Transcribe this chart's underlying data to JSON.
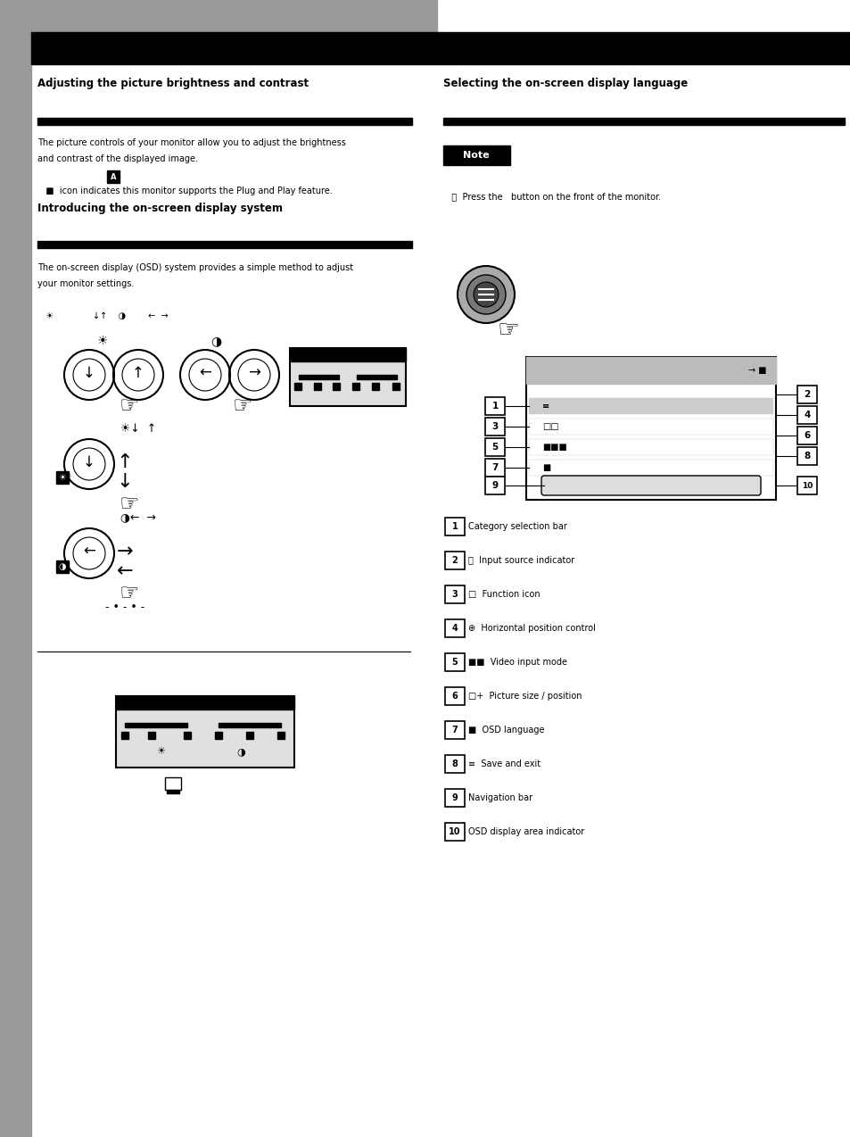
{
  "bg_color": "#ffffff",
  "header_bar_color": "#000000",
  "header_left_bg": "#999999",
  "section_bar_color": "#000000",
  "left_tab_color": "#999999",
  "section1_title": "Adjusting the picture brightness and contrast",
  "section2_title": "Introducing the on-screen display system",
  "right_section_title": "Selecting the on-screen display language",
  "font_size_section": 8.5,
  "font_size_body": 7,
  "font_size_small": 6,
  "osd_face_color": "#e0e0e0",
  "note_box_color": "#000000"
}
